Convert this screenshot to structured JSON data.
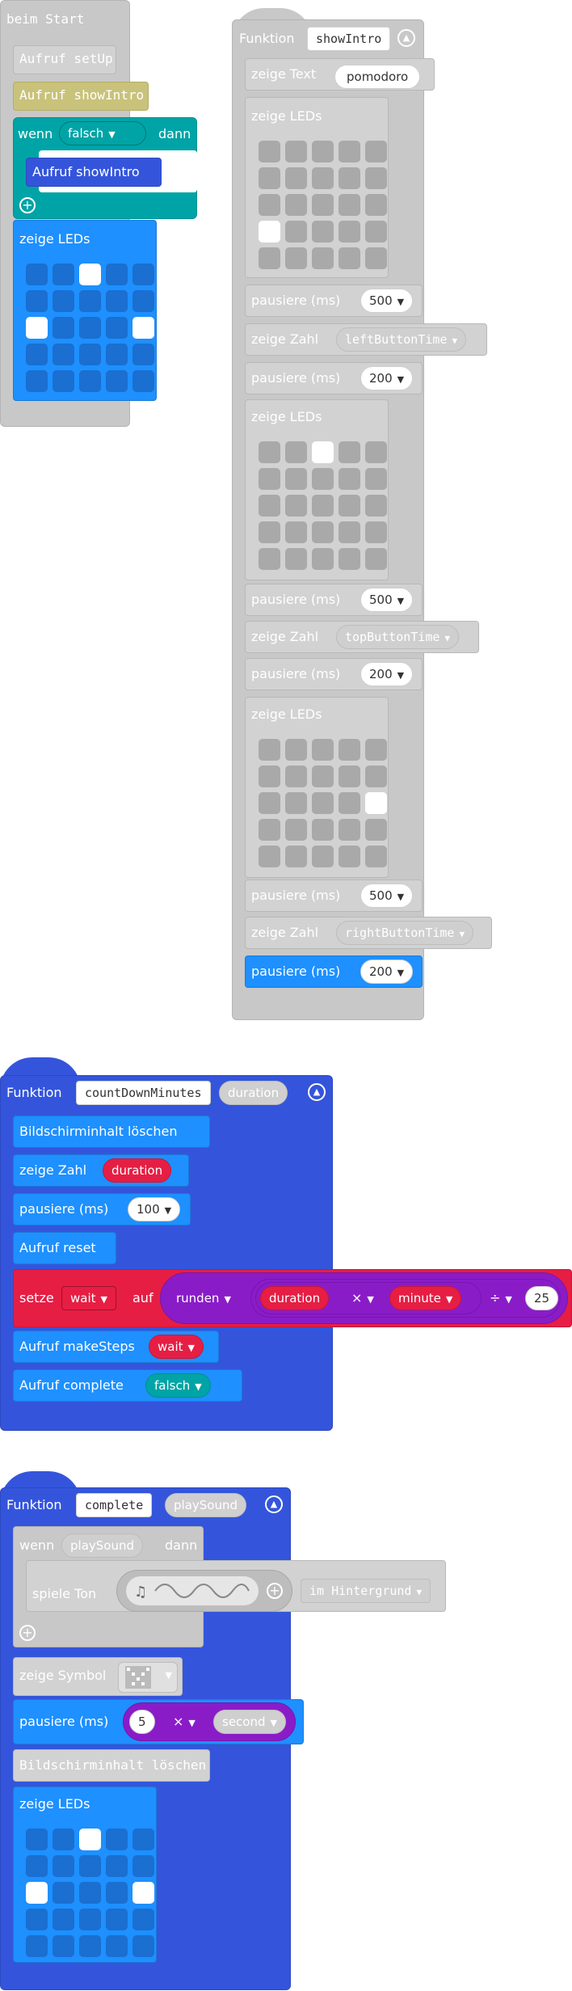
{
  "leds_blue_pattern": [
    0,
    0,
    1,
    0,
    0,
    0,
    0,
    0,
    0,
    0,
    1,
    0,
    0,
    0,
    1,
    0,
    0,
    0,
    0,
    0,
    0,
    0,
    0,
    0,
    0
  ],
  "start_block": {
    "label": "beim Start",
    "call_setup": "Aufruf setUp",
    "call_showintro": "Aufruf showIntro",
    "if_label": "wenn",
    "if_cond": "falsch",
    "then_label": "dann",
    "inner_call": "Aufruf showIntro",
    "show_leds": "zeige LEDs"
  },
  "showintro": {
    "func_label": "Funktion",
    "name": "showIntro",
    "show_text": "zeige Text",
    "text_value": "pomodoro",
    "show_leds_1": "zeige LEDs",
    "leds_1": [
      0,
      0,
      0,
      0,
      0,
      0,
      0,
      0,
      0,
      0,
      0,
      0,
      0,
      0,
      0,
      1,
      0,
      0,
      0,
      0,
      0,
      0,
      0,
      0,
      0
    ],
    "pause_1": "pausiere (ms)",
    "pause_1_val": "500",
    "show_num_1": "zeige Zahl",
    "num_1_var": "leftButtonTime",
    "pause_2": "pausiere (ms)",
    "pause_2_val": "200",
    "show_leds_2": "zeige LEDs",
    "leds_2": [
      0,
      0,
      1,
      0,
      0,
      0,
      0,
      0,
      0,
      0,
      0,
      0,
      0,
      0,
      0,
      0,
      0,
      0,
      0,
      0,
      0,
      0,
      0,
      0,
      0
    ],
    "pause_3": "pausiere (ms)",
    "pause_3_val": "500",
    "show_num_2": "zeige Zahl",
    "num_2_var": "topButtonTime",
    "pause_4": "pausiere (ms)",
    "pause_4_val": "200",
    "show_leds_3": "zeige LEDs",
    "leds_3": [
      0,
      0,
      0,
      0,
      0,
      0,
      0,
      0,
      0,
      0,
      0,
      0,
      0,
      0,
      1,
      0,
      0,
      0,
      0,
      0,
      0,
      0,
      0,
      0,
      0
    ],
    "pause_5": "pausiere (ms)",
    "pause_5_val": "500",
    "show_num_3": "zeige Zahl",
    "num_3_var": "rightButtonTime",
    "pause_6": "pausiere (ms)",
    "pause_6_val": "200"
  },
  "countdown": {
    "func_label": "Funktion",
    "name": "countDownMinutes",
    "param": "duration",
    "clear": "Bildschirminhalt löschen",
    "show_num": "zeige Zahl",
    "num_var": "duration",
    "pause": "pausiere (ms)",
    "pause_val": "100",
    "call_reset": "Aufruf reset",
    "set_label": "setze",
    "set_var": "wait",
    "to_label": "auf",
    "round_label": "runden",
    "dur_var": "duration",
    "times_op": "×",
    "minute_var": "minute",
    "div_op": "÷",
    "div_val": "25",
    "call_steps": "Aufruf makeSteps",
    "steps_arg": "wait",
    "call_complete": "Aufruf complete",
    "complete_arg": "falsch"
  },
  "complete": {
    "func_label": "Funktion",
    "name": "complete",
    "param": "playSound",
    "if_label": "wenn",
    "if_cond": "playSound",
    "then_label": "dann",
    "play_tone": "spiele Ton",
    "bg_label": "im Hintergrund",
    "show_icon": "zeige Symbol",
    "pause": "pausiere (ms)",
    "pause_val": "5",
    "times_op": "×",
    "second_var": "second",
    "clear": "Bildschirminhalt löschen",
    "show_leds": "zeige LEDs"
  },
  "colors": {
    "blue": "#1e90ff",
    "dark_blue": "#3455db",
    "teal": "#00a4a6",
    "red": "#e61e44",
    "purple": "#8a1cc8",
    "disabled_gray": "#c8c8c8"
  }
}
